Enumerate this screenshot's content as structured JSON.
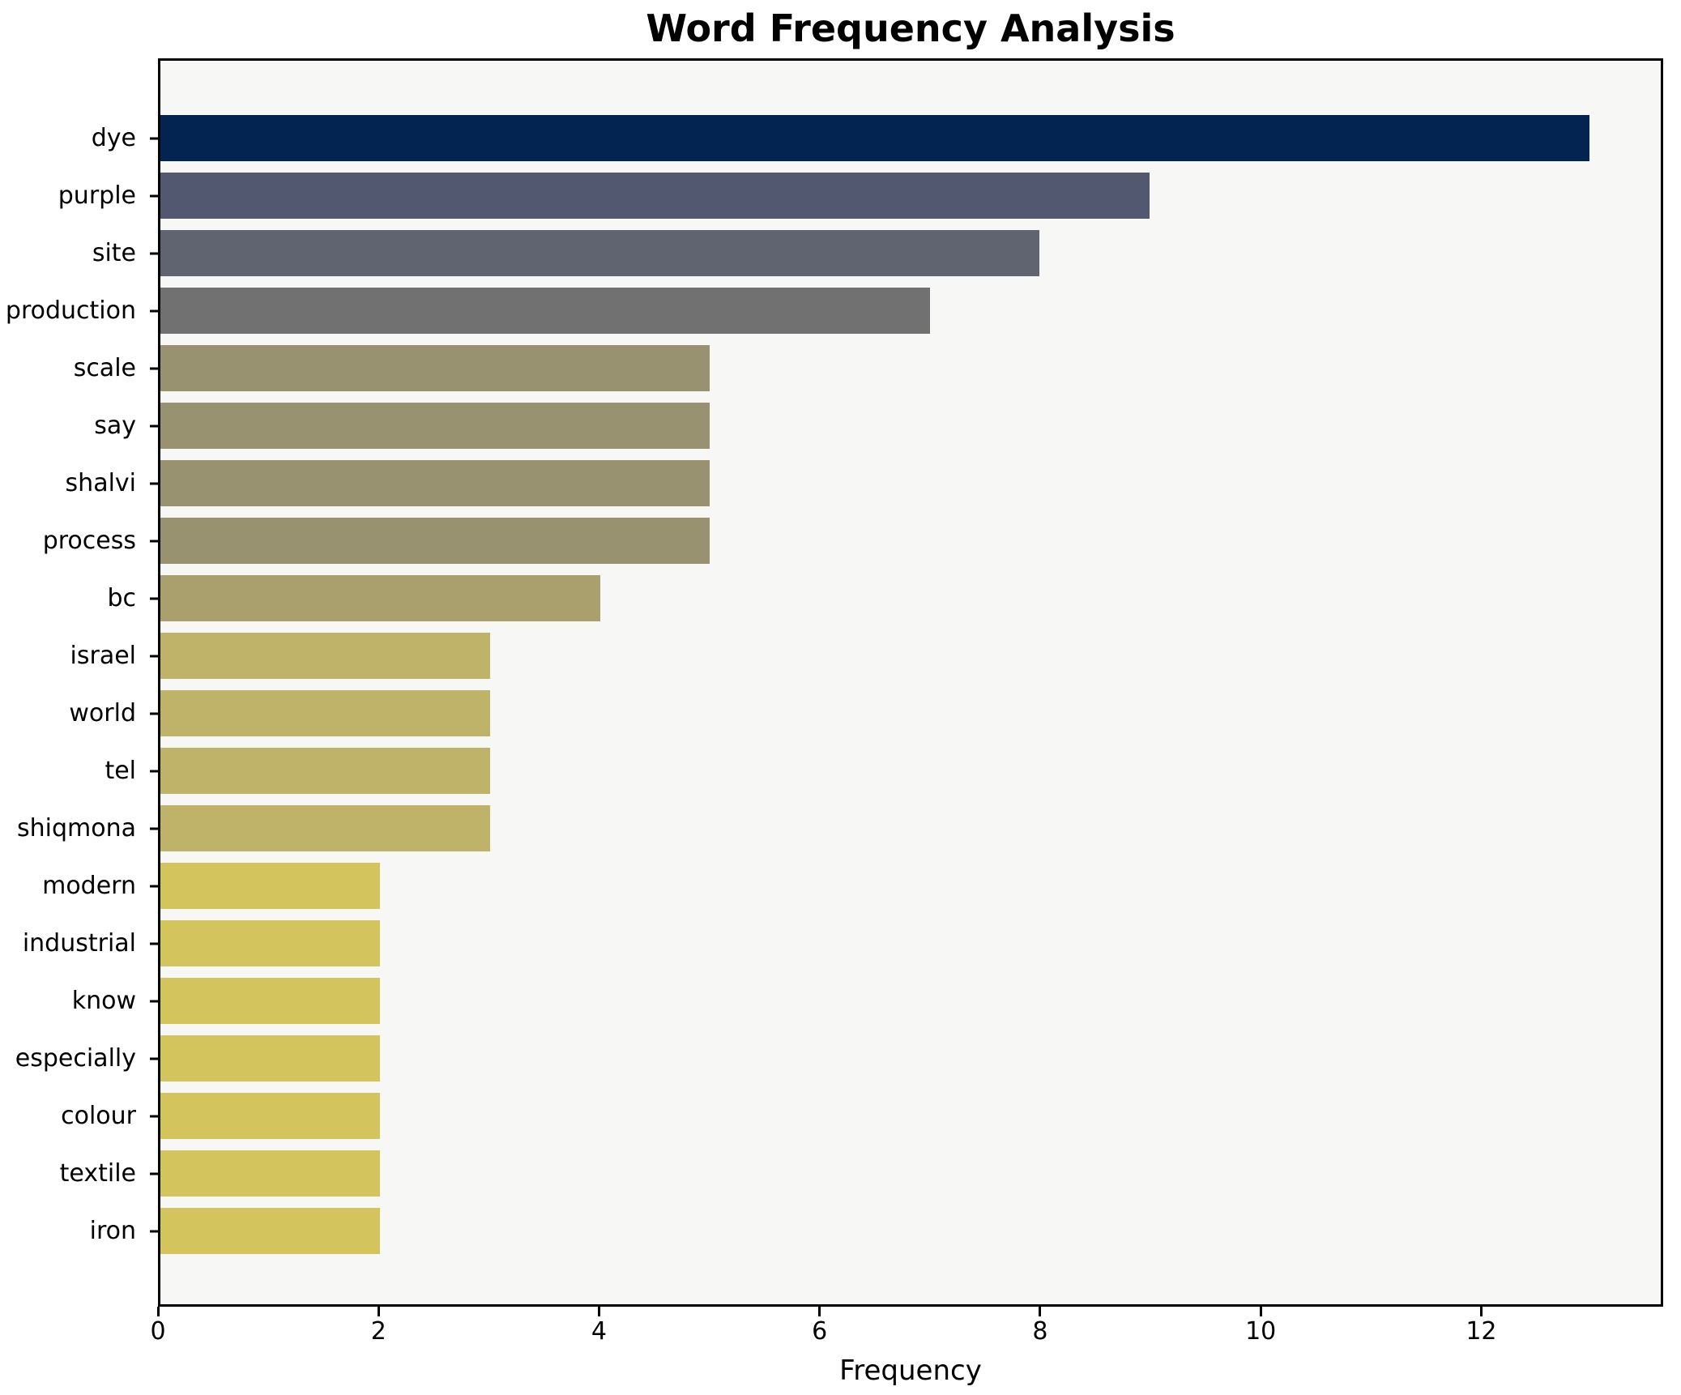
{
  "chart_data": {
    "type": "bar",
    "orientation": "horizontal",
    "title": "Word Frequency Analysis",
    "xlabel": "Frequency",
    "ylabel": "",
    "xlim": [
      0,
      13.65
    ],
    "xticks": [
      0,
      2,
      4,
      6,
      8,
      10,
      12
    ],
    "grid": false,
    "legend": false,
    "figure_background": "#ffffff",
    "plot_background": "#f7f7f5",
    "spine_color": "#000000",
    "categories": [
      "dye",
      "purple",
      "site",
      "production",
      "scale",
      "say",
      "shalvi",
      "process",
      "bc",
      "israel",
      "world",
      "tel",
      "shiqmona",
      "modern",
      "industrial",
      "know",
      "especially",
      "colour",
      "textile",
      "iron"
    ],
    "values": [
      13,
      9,
      8,
      7,
      5,
      5,
      5,
      5,
      4,
      3,
      3,
      3,
      3,
      2,
      2,
      2,
      2,
      2,
      2,
      2
    ],
    "bar_colors": [
      "#032450",
      "#525870",
      "#606470",
      "#717171",
      "#999270",
      "#999270",
      "#999270",
      "#999270",
      "#a9a06e",
      "#bfb269",
      "#bfb269",
      "#bfb269",
      "#bfb269",
      "#d3c45e",
      "#d3c45e",
      "#d3c45e",
      "#d3c45e",
      "#d3c45e",
      "#d3c45e",
      "#d3c45e"
    ]
  }
}
